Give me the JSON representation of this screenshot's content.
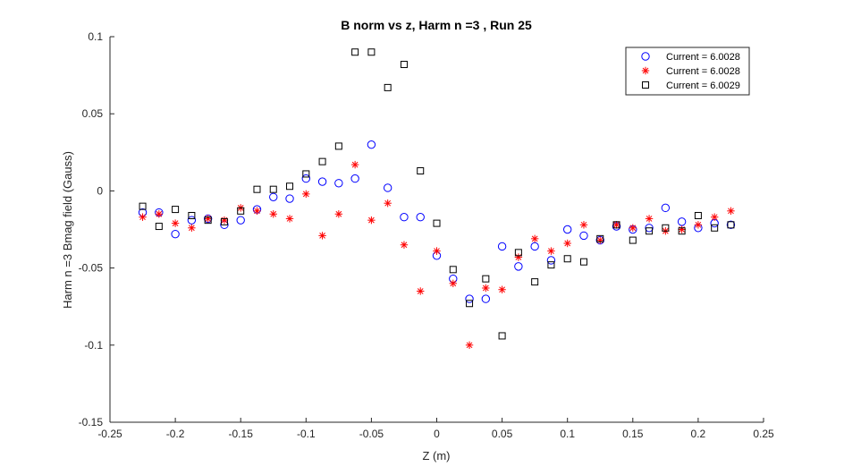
{
  "chart_data": {
    "type": "scatter",
    "title": "B norm vs z, Harm n =3 , Run 25",
    "xlabel": "Z (m)",
    "ylabel": "Harm n =3 Bmag field (Gauss)",
    "xlim": [
      -0.25,
      0.25
    ],
    "ylim": [
      -0.15,
      0.1
    ],
    "xticks": [
      -0.25,
      -0.2,
      -0.15,
      -0.1,
      -0.05,
      0,
      0.05,
      0.1,
      0.15,
      0.2,
      0.25
    ],
    "xtick_labels": [
      "-0.25",
      "-0.2",
      "-0.15",
      "-0.1",
      "-0.05",
      "0",
      "0.05",
      "0.1",
      "0.15",
      "0.2",
      "0.25"
    ],
    "yticks": [
      -0.15,
      -0.1,
      -0.05,
      0,
      0.05,
      0.1
    ],
    "ytick_labels": [
      "-0.15",
      "-0.1",
      "-0.05",
      "0",
      "0.05",
      "0.1"
    ],
    "grid": false,
    "legend_position": "top-right",
    "series": [
      {
        "name": "Current = 6.0028",
        "marker": "circle",
        "color": "#0000ff",
        "x": [
          -0.225,
          -0.2125,
          -0.2,
          -0.1875,
          -0.175,
          -0.1625,
          -0.15,
          -0.1375,
          -0.125,
          -0.1125,
          -0.1,
          -0.0875,
          -0.075,
          -0.0625,
          -0.05,
          -0.0375,
          -0.025,
          -0.0125,
          0,
          0.0125,
          0.025,
          0.0375,
          0.05,
          0.0625,
          0.075,
          0.0875,
          0.1,
          0.1125,
          0.125,
          0.1375,
          0.15,
          0.1625,
          0.175,
          0.1875,
          0.2,
          0.2125,
          0.225
        ],
        "y": [
          -0.014,
          -0.014,
          -0.028,
          -0.019,
          -0.018,
          -0.022,
          -0.019,
          -0.012,
          -0.004,
          -0.005,
          0.008,
          0.006,
          0.005,
          0.008,
          0.03,
          0.002,
          -0.017,
          -0.017,
          -0.042,
          -0.057,
          -0.07,
          -0.07,
          -0.036,
          -0.049,
          -0.036,
          -0.045,
          -0.025,
          -0.029,
          -0.032,
          -0.023,
          -0.025,
          -0.024,
          -0.011,
          -0.02,
          -0.024,
          -0.021,
          -0.022
        ]
      },
      {
        "name": "Current = 6.0028",
        "marker": "asterisk",
        "color": "#ff0000",
        "x": [
          -0.225,
          -0.2125,
          -0.2,
          -0.1875,
          -0.175,
          -0.1625,
          -0.15,
          -0.1375,
          -0.125,
          -0.1125,
          -0.1,
          -0.0875,
          -0.075,
          -0.0625,
          -0.05,
          -0.0375,
          -0.025,
          -0.0125,
          0,
          0.0125,
          0.025,
          0.0375,
          0.05,
          0.0625,
          0.075,
          0.0875,
          0.1,
          0.1125,
          0.125,
          0.1375,
          0.15,
          0.1625,
          0.175,
          0.1875,
          0.2,
          0.2125,
          0.225
        ],
        "y": [
          -0.017,
          -0.015,
          -0.021,
          -0.024,
          -0.018,
          -0.019,
          -0.011,
          -0.013,
          -0.015,
          -0.018,
          -0.002,
          -0.029,
          -0.015,
          0.017,
          -0.019,
          -0.008,
          -0.035,
          -0.065,
          -0.039,
          -0.06,
          -0.1,
          -0.063,
          -0.064,
          -0.043,
          -0.031,
          -0.039,
          -0.034,
          -0.022,
          -0.032,
          -0.022,
          -0.024,
          -0.018,
          -0.026,
          -0.025,
          -0.022,
          -0.017,
          -0.013
        ]
      },
      {
        "name": "Current = 6.0029",
        "marker": "square",
        "color": "#000000",
        "x": [
          -0.225,
          -0.2125,
          -0.2,
          -0.1875,
          -0.175,
          -0.1625,
          -0.15,
          -0.1375,
          -0.125,
          -0.1125,
          -0.1,
          -0.0875,
          -0.075,
          -0.0625,
          -0.05,
          -0.0375,
          -0.025,
          -0.0125,
          0,
          0.0125,
          0.025,
          0.0375,
          0.05,
          0.0625,
          0.075,
          0.0875,
          0.1,
          0.1125,
          0.125,
          0.1375,
          0.15,
          0.1625,
          0.175,
          0.1875,
          0.2,
          0.2125,
          0.225
        ],
        "y": [
          -0.01,
          -0.023,
          -0.012,
          -0.016,
          -0.019,
          -0.02,
          -0.013,
          0.001,
          0.001,
          0.003,
          0.011,
          0.019,
          0.029,
          0.09,
          0.09,
          0.067,
          0.082,
          0.013,
          -0.021,
          -0.051,
          -0.073,
          -0.057,
          -0.094,
          -0.04,
          -0.059,
          -0.048,
          -0.044,
          -0.046,
          -0.031,
          -0.022,
          -0.032,
          -0.026,
          -0.024,
          -0.026,
          -0.016,
          -0.024,
          -0.022
        ]
      }
    ]
  }
}
